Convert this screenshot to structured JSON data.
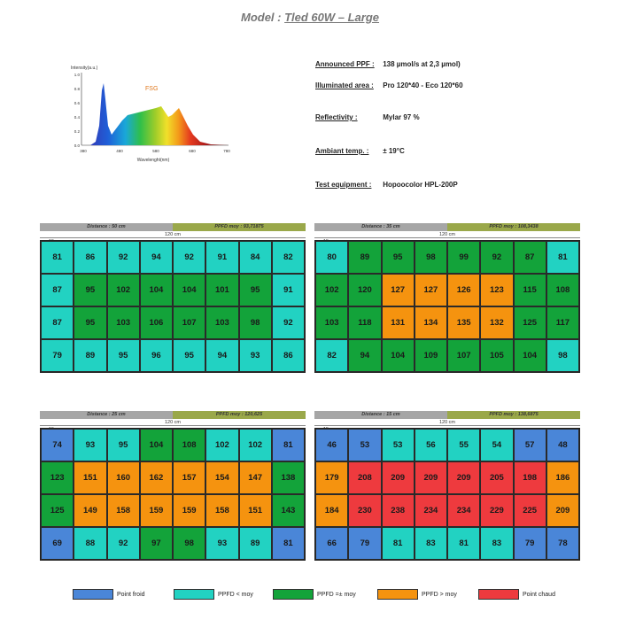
{
  "title": {
    "prefix": "Model : ",
    "model": "Tled 60W – Large"
  },
  "spectrum": {
    "y_label": "Intensity(a.u.)",
    "x_label": "Wavelenght(nm)",
    "y_ticks": [
      "1.0",
      "0.8",
      "0.6",
      "0.4",
      "0.2",
      "0.0"
    ],
    "x_ticks": [
      "380",
      "480",
      "580",
      "680",
      "780"
    ],
    "series_label": "FSG"
  },
  "specs": [
    {
      "label": "Announced PPF :",
      "value": "138 µmol/s at 2,3 µmol)"
    },
    {
      "label": "Illuminated area :",
      "value": "Pro 120*40  -  Eco 120*60"
    },
    {
      "label": "Reflectivity :",
      "value": "Mylar 97 %"
    },
    {
      "label": "Ambiant temp. :",
      "value": "± 19°C"
    },
    {
      "label": "Test equipment :",
      "value": "Hopoocolor HPL-200P"
    }
  ],
  "colors": {
    "cold": "#4a86d8",
    "below": "#22d2c2",
    "avg": "#13a33a",
    "above": "#f5930f",
    "hot": "#ee3a3e"
  },
  "dims": {
    "width": "120 cm",
    "margin": "15 cm"
  },
  "panels": [
    {
      "distance": "Distance :  50 cm",
      "ppfd": "PPFD moy :  93,71875",
      "values": [
        [
          81,
          86,
          92,
          94,
          92,
          91,
          84,
          82
        ],
        [
          87,
          95,
          102,
          104,
          104,
          101,
          95,
          91
        ],
        [
          87,
          95,
          103,
          106,
          107,
          103,
          98,
          92
        ],
        [
          79,
          89,
          95,
          96,
          95,
          94,
          93,
          86
        ]
      ],
      "classes": [
        [
          "below",
          "below",
          "below",
          "below",
          "below",
          "below",
          "below",
          "below"
        ],
        [
          "below",
          "avg",
          "avg",
          "avg",
          "avg",
          "avg",
          "avg",
          "below"
        ],
        [
          "below",
          "avg",
          "avg",
          "avg",
          "avg",
          "avg",
          "avg",
          "below"
        ],
        [
          "below",
          "below",
          "below",
          "below",
          "below",
          "below",
          "below",
          "below"
        ]
      ]
    },
    {
      "distance": "Distance :  35 cm",
      "ppfd": "PPFD moy :  108,3438",
      "values": [
        [
          80,
          89,
          95,
          98,
          99,
          92,
          87,
          81
        ],
        [
          102,
          120,
          127,
          127,
          126,
          123,
          115,
          108
        ],
        [
          103,
          118,
          131,
          134,
          135,
          132,
          125,
          117
        ],
        [
          82,
          94,
          104,
          109,
          107,
          105,
          104,
          98
        ]
      ],
      "classes": [
        [
          "below",
          "avg",
          "avg",
          "avg",
          "avg",
          "avg",
          "avg",
          "below"
        ],
        [
          "avg",
          "avg",
          "above",
          "above",
          "above",
          "above",
          "avg",
          "avg"
        ],
        [
          "avg",
          "avg",
          "above",
          "above",
          "above",
          "above",
          "avg",
          "avg"
        ],
        [
          "below",
          "avg",
          "avg",
          "avg",
          "avg",
          "avg",
          "avg",
          "below"
        ]
      ]
    },
    {
      "distance": "Distance :  25 cm",
      "ppfd": "PPFD moy :  120,625",
      "values": [
        [
          74,
          93,
          95,
          104,
          108,
          102,
          102,
          81
        ],
        [
          123,
          151,
          160,
          162,
          157,
          154,
          147,
          138
        ],
        [
          125,
          149,
          158,
          159,
          159,
          158,
          151,
          143
        ],
        [
          69,
          88,
          92,
          97,
          98,
          93,
          89,
          81
        ]
      ],
      "classes": [
        [
          "cold",
          "below",
          "below",
          "avg",
          "avg",
          "below",
          "below",
          "cold"
        ],
        [
          "avg",
          "above",
          "above",
          "above",
          "above",
          "above",
          "above",
          "avg"
        ],
        [
          "avg",
          "above",
          "above",
          "above",
          "above",
          "above",
          "above",
          "avg"
        ],
        [
          "cold",
          "below",
          "below",
          "avg",
          "avg",
          "below",
          "below",
          "cold"
        ]
      ]
    },
    {
      "distance": "Distance :  15 cm",
      "ppfd": "PPFD moy :  138,6875",
      "values": [
        [
          46,
          53,
          53,
          56,
          55,
          54,
          57,
          48
        ],
        [
          179,
          208,
          209,
          209,
          209,
          205,
          198,
          186
        ],
        [
          184,
          230,
          238,
          234,
          234,
          229,
          225,
          209
        ],
        [
          66,
          79,
          81,
          83,
          81,
          83,
          79,
          78
        ]
      ],
      "classes": [
        [
          "cold",
          "cold",
          "below",
          "below",
          "below",
          "below",
          "cold",
          "cold"
        ],
        [
          "above",
          "hot",
          "hot",
          "hot",
          "hot",
          "hot",
          "hot",
          "above"
        ],
        [
          "above",
          "hot",
          "hot",
          "hot",
          "hot",
          "hot",
          "hot",
          "above"
        ],
        [
          "cold",
          "cold",
          "below",
          "below",
          "below",
          "below",
          "cold",
          "cold"
        ]
      ]
    }
  ],
  "legend": [
    {
      "key": "cold",
      "label": "Point froid"
    },
    {
      "key": "below",
      "label": "PPFD < moy"
    },
    {
      "key": "avg",
      "label": "PPFD =± moy"
    },
    {
      "key": "above",
      "label": "PPFD > moy"
    },
    {
      "key": "hot",
      "label": "Point chaud"
    }
  ]
}
